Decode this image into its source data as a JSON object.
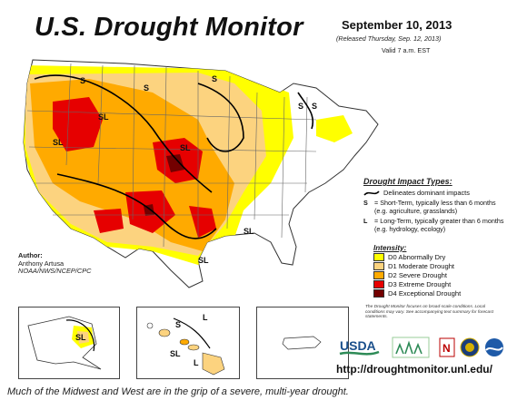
{
  "header": {
    "title": "U.S. Drought Monitor",
    "date": "September 10, 2013",
    "released": "(Released Thursday, Sep. 12, 2013)",
    "valid": "Valid 7 a.m. EST"
  },
  "legend": {
    "impact_heading": "Drought Impact Types:",
    "delineates": "Delineates dominant impacts",
    "short_term_key": "S",
    "short_term_text": "= Short-Term, typically less than 6 months (e.g. agriculture, grasslands)",
    "long_term_key": "L",
    "long_term_text": "= Long-Term, typically greater than 6 months (e.g. hydrology, ecology)",
    "intensity_heading": "Intensity:",
    "categories": [
      {
        "code": "D0",
        "label": "D0 Abnormally Dry",
        "color": "#ffff00"
      },
      {
        "code": "D1",
        "label": "D1 Moderate Drought",
        "color": "#fcd37f"
      },
      {
        "code": "D2",
        "label": "D2 Severe Drought",
        "color": "#ffaa00"
      },
      {
        "code": "D3",
        "label": "D3 Extreme Drought",
        "color": "#e60000"
      },
      {
        "code": "D4",
        "label": "D4 Exceptional Drought",
        "color": "#730000"
      }
    ]
  },
  "author": {
    "heading": "Author:",
    "name": "Anthony Artusa",
    "org": "NOAA/NWS/NCEP/CPC"
  },
  "map_labels": {
    "S": "S",
    "SL": "SL",
    "L": "L"
  },
  "note": "The Drought Monitor focuses on broad-scale conditions. Local conditions may vary. See accompanying text summary for forecast statements.",
  "logos": {
    "usda": "USDA"
  },
  "url": "http://droughtmonitor.unl.edu/",
  "caption": "Much of the Midwest and West are in the grip of a severe, multi-year drought."
}
